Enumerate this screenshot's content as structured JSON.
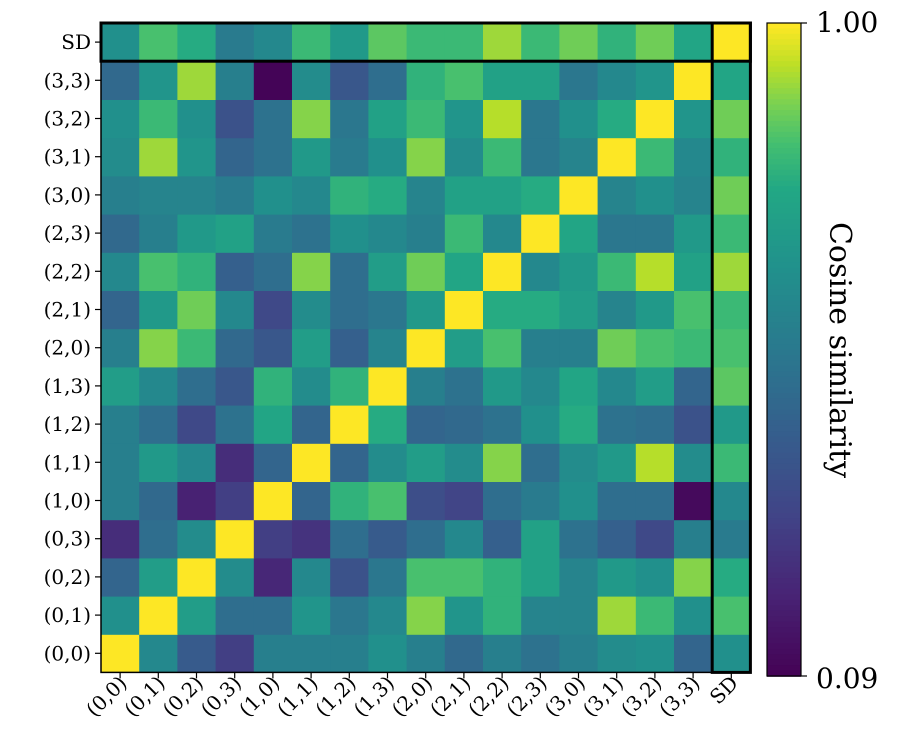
{
  "chart_data": {
    "type": "heatmap",
    "title": "",
    "xlabel": "",
    "ylabel": "",
    "labels": [
      "(0,0)",
      "(0,1)",
      "(0,2)",
      "(0,3)",
      "(1,0)",
      "(1,1)",
      "(1,2)",
      "(1,3)",
      "(2,0)",
      "(2,1)",
      "(2,2)",
      "(2,3)",
      "(3,0)",
      "(3,1)",
      "(3,2)",
      "(3,3)",
      "SD"
    ],
    "rows_bottom_to_top": [
      [
        1.0,
        0.62,
        0.42,
        0.3,
        0.58,
        0.58,
        0.58,
        0.66,
        0.58,
        0.48,
        0.58,
        0.52,
        0.58,
        0.64,
        0.66,
        0.46,
        0.66
      ],
      [
        0.66,
        1.0,
        0.72,
        0.5,
        0.5,
        0.68,
        0.54,
        0.62,
        0.9,
        0.68,
        0.8,
        0.6,
        0.6,
        0.92,
        0.82,
        0.66,
        0.84
      ],
      [
        0.46,
        0.72,
        1.0,
        0.64,
        0.22,
        0.62,
        0.38,
        0.54,
        0.84,
        0.84,
        0.8,
        0.74,
        0.6,
        0.7,
        0.66,
        0.9,
        0.78
      ],
      [
        0.24,
        0.5,
        0.64,
        1.0,
        0.3,
        0.26,
        0.5,
        0.42,
        0.5,
        0.62,
        0.44,
        0.74,
        0.52,
        0.44,
        0.34,
        0.58,
        0.56
      ],
      [
        0.58,
        0.48,
        0.2,
        0.3,
        1.0,
        0.46,
        0.8,
        0.84,
        0.36,
        0.32,
        0.5,
        0.56,
        0.66,
        0.5,
        0.5,
        0.12,
        0.62
      ],
      [
        0.58,
        0.7,
        0.62,
        0.24,
        0.46,
        1.0,
        0.46,
        0.64,
        0.72,
        0.64,
        0.9,
        0.5,
        0.64,
        0.7,
        0.94,
        0.64,
        0.82
      ],
      [
        0.58,
        0.5,
        0.34,
        0.52,
        0.76,
        0.46,
        1.0,
        0.78,
        0.46,
        0.48,
        0.52,
        0.66,
        0.78,
        0.52,
        0.5,
        0.38,
        0.7
      ],
      [
        0.72,
        0.62,
        0.5,
        0.4,
        0.8,
        0.64,
        0.8,
        1.0,
        0.58,
        0.52,
        0.7,
        0.62,
        0.76,
        0.62,
        0.72,
        0.46,
        0.86
      ],
      [
        0.58,
        0.9,
        0.82,
        0.48,
        0.4,
        0.72,
        0.44,
        0.6,
        1.0,
        0.72,
        0.84,
        0.58,
        0.58,
        0.88,
        0.84,
        0.82,
        0.84
      ],
      [
        0.46,
        0.7,
        0.88,
        0.62,
        0.34,
        0.64,
        0.5,
        0.54,
        0.7,
        1.0,
        0.78,
        0.78,
        0.72,
        0.6,
        0.7,
        0.84,
        0.82
      ],
      [
        0.62,
        0.84,
        0.8,
        0.44,
        0.5,
        0.9,
        0.5,
        0.72,
        0.88,
        0.76,
        1.0,
        0.62,
        0.7,
        0.82,
        0.94,
        0.74,
        0.92
      ],
      [
        0.48,
        0.58,
        0.7,
        0.74,
        0.56,
        0.52,
        0.66,
        0.62,
        0.58,
        0.82,
        0.62,
        1.0,
        0.76,
        0.54,
        0.54,
        0.7,
        0.82
      ],
      [
        0.58,
        0.6,
        0.6,
        0.56,
        0.66,
        0.62,
        0.8,
        0.78,
        0.6,
        0.74,
        0.74,
        0.78,
        1.0,
        0.6,
        0.66,
        0.6,
        0.88
      ],
      [
        0.64,
        0.92,
        0.68,
        0.46,
        0.52,
        0.7,
        0.56,
        0.66,
        0.9,
        0.64,
        0.82,
        0.54,
        0.6,
        1.0,
        0.82,
        0.62,
        0.8
      ],
      [
        0.66,
        0.82,
        0.66,
        0.38,
        0.52,
        0.9,
        0.54,
        0.74,
        0.82,
        0.68,
        0.94,
        0.54,
        0.66,
        0.78,
        1.0,
        0.68,
        0.88
      ],
      [
        0.48,
        0.68,
        0.92,
        0.58,
        0.1,
        0.64,
        0.4,
        0.5,
        0.8,
        0.84,
        0.74,
        0.74,
        0.54,
        0.62,
        0.68,
        1.0,
        0.76
      ],
      [
        0.66,
        0.84,
        0.78,
        0.56,
        0.62,
        0.82,
        0.7,
        0.86,
        0.82,
        0.82,
        0.92,
        0.82,
        0.88,
        0.8,
        0.88,
        0.76,
        1.0
      ]
    ],
    "colorbar": {
      "label": "Cosine similarity",
      "min": 0.09,
      "max": 1.0,
      "min_label": "0.09",
      "max_label": "1.00",
      "colormap": "viridis"
    },
    "highlight": "SD row and SD column outlined"
  }
}
